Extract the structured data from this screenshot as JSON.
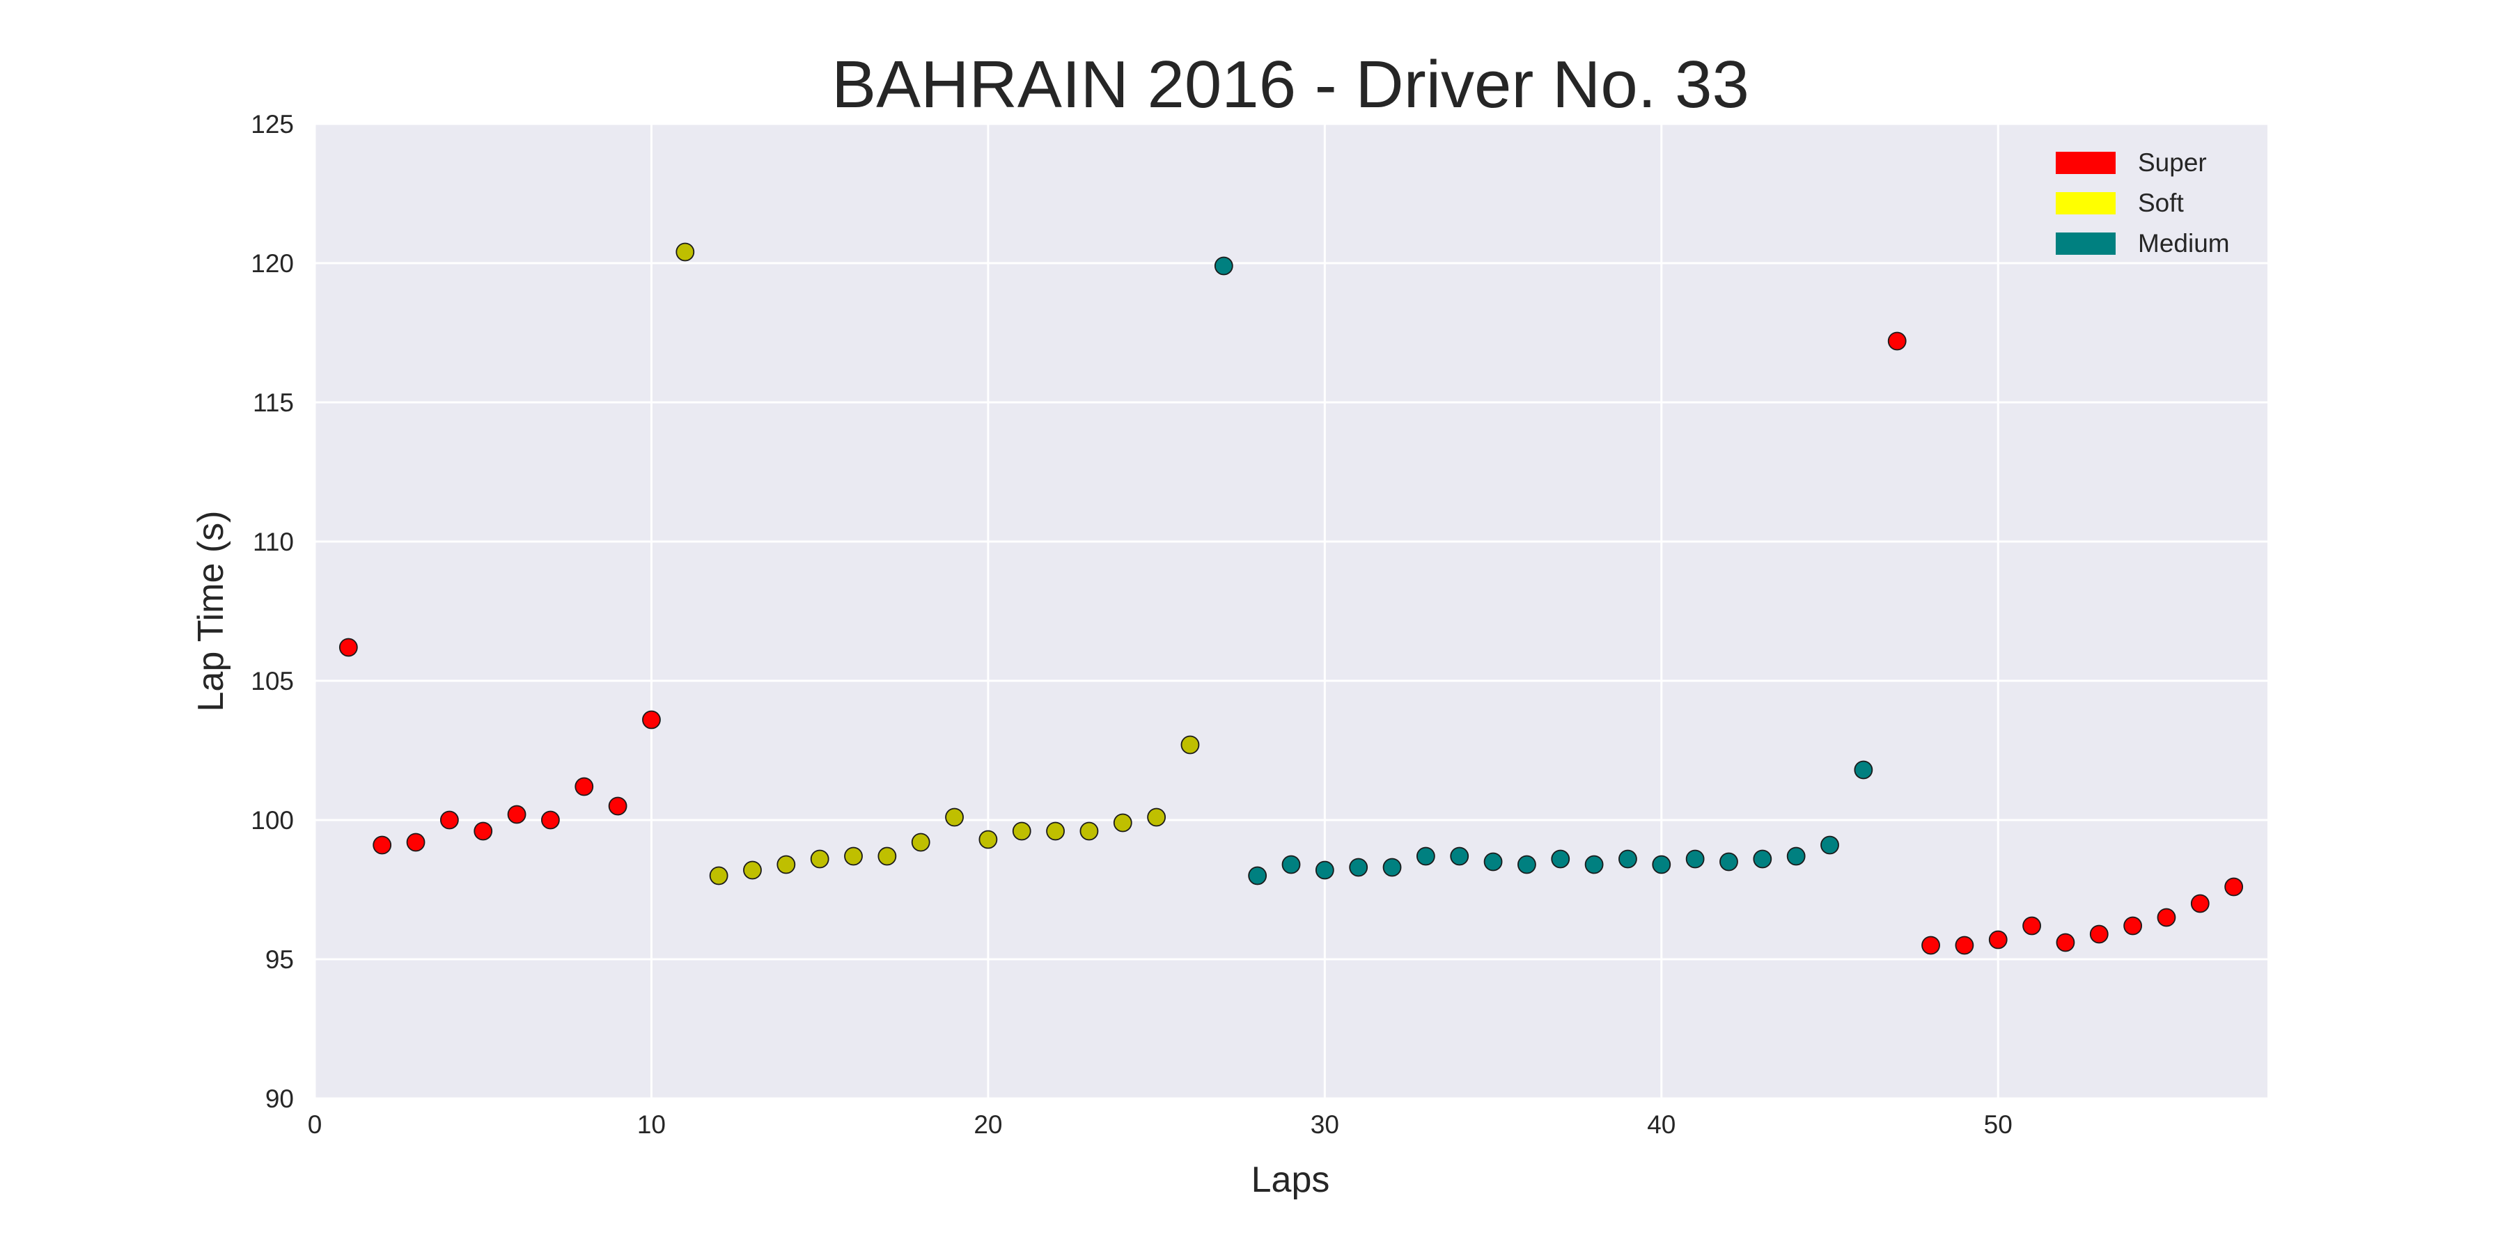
{
  "chart_data": {
    "type": "scatter",
    "title": "BAHRAIN 2016 - Driver No. 33",
    "xlabel": "Laps",
    "ylabel": "Lap Time (s)",
    "xlim": [
      0,
      58
    ],
    "ylim": [
      90,
      125
    ],
    "xticks": [
      0,
      10,
      20,
      30,
      40,
      50
    ],
    "yticks": [
      90,
      95,
      100,
      105,
      110,
      115,
      120,
      125
    ],
    "grid": true,
    "legend_position": "top-right",
    "background_color": "#eaeaf2",
    "series": [
      {
        "name": "Super",
        "color": "#ff0000",
        "x": [
          1,
          2,
          3,
          4,
          5,
          6,
          7,
          8,
          9,
          10,
          47,
          48,
          49,
          50,
          51,
          52,
          53,
          54,
          55,
          56,
          57
        ],
        "y": [
          106.2,
          99.1,
          99.2,
          100.0,
          99.6,
          100.2,
          100.0,
          101.2,
          100.5,
          103.6,
          117.2,
          95.5,
          95.5,
          95.7,
          96.2,
          95.6,
          95.9,
          96.2,
          96.5,
          97.0,
          97.6
        ]
      },
      {
        "name": "Soft",
        "color": "#ffff00",
        "marker_color": "#bfbf00",
        "x": [
          11,
          12,
          13,
          14,
          15,
          16,
          17,
          18,
          19,
          20,
          21,
          22,
          23,
          24,
          25,
          26
        ],
        "y": [
          120.4,
          98.0,
          98.2,
          98.4,
          98.6,
          98.7,
          98.7,
          99.2,
          100.1,
          99.3,
          99.6,
          99.6,
          99.6,
          99.9,
          100.1,
          102.7
        ]
      },
      {
        "name": "Medium",
        "color": "#008080",
        "x": [
          27,
          28,
          29,
          30,
          31,
          32,
          33,
          34,
          35,
          36,
          37,
          38,
          39,
          40,
          41,
          42,
          43,
          44,
          45,
          46
        ],
        "y": [
          119.9,
          98.0,
          98.4,
          98.2,
          98.3,
          98.3,
          98.7,
          98.7,
          98.5,
          98.4,
          98.6,
          98.4,
          98.6,
          98.4,
          98.6,
          98.5,
          98.6,
          98.7,
          99.1,
          101.8
        ]
      }
    ]
  }
}
